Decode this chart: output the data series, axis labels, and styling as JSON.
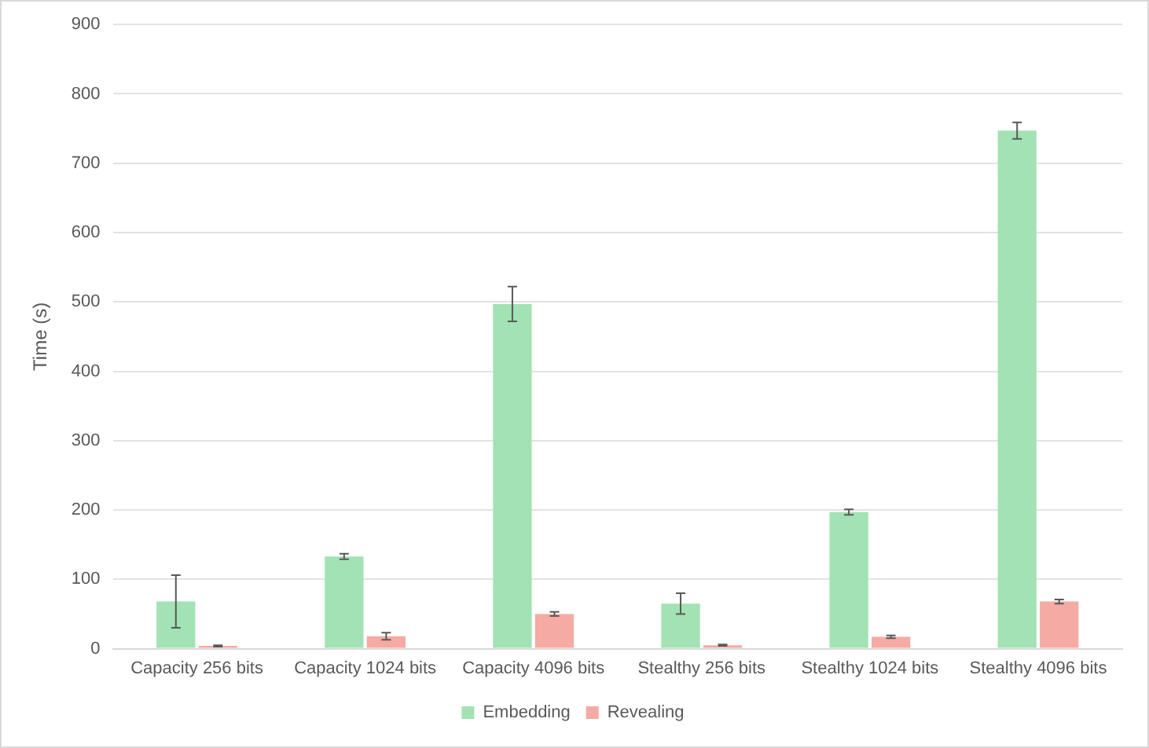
{
  "chart_data": {
    "type": "bar",
    "ylabel": "Time (s)",
    "categories": [
      "Capacity 256 bits",
      "Capacity 1024 bits",
      "Capacity 4096 bits",
      "Stealthy 256 bits",
      "Stealthy 1024 bits",
      "Stealthy 4096 bits"
    ],
    "series": [
      {
        "name": "Embedding",
        "color": "#a2e2b4",
        "values": [
          68,
          133,
          497,
          65,
          197,
          747
        ],
        "errors": [
          38,
          4,
          25,
          15,
          4,
          12
        ]
      },
      {
        "name": "Revealing",
        "color": "#f5aaa3",
        "values": [
          4,
          18,
          50,
          5,
          17,
          68
        ],
        "errors": [
          1,
          5,
          3,
          1,
          2,
          3
        ]
      }
    ],
    "ylim": [
      0,
      900
    ],
    "yticks": [
      0,
      100,
      200,
      300,
      400,
      500,
      600,
      700,
      800,
      900
    ],
    "grid": "y",
    "legend": "bottom"
  }
}
